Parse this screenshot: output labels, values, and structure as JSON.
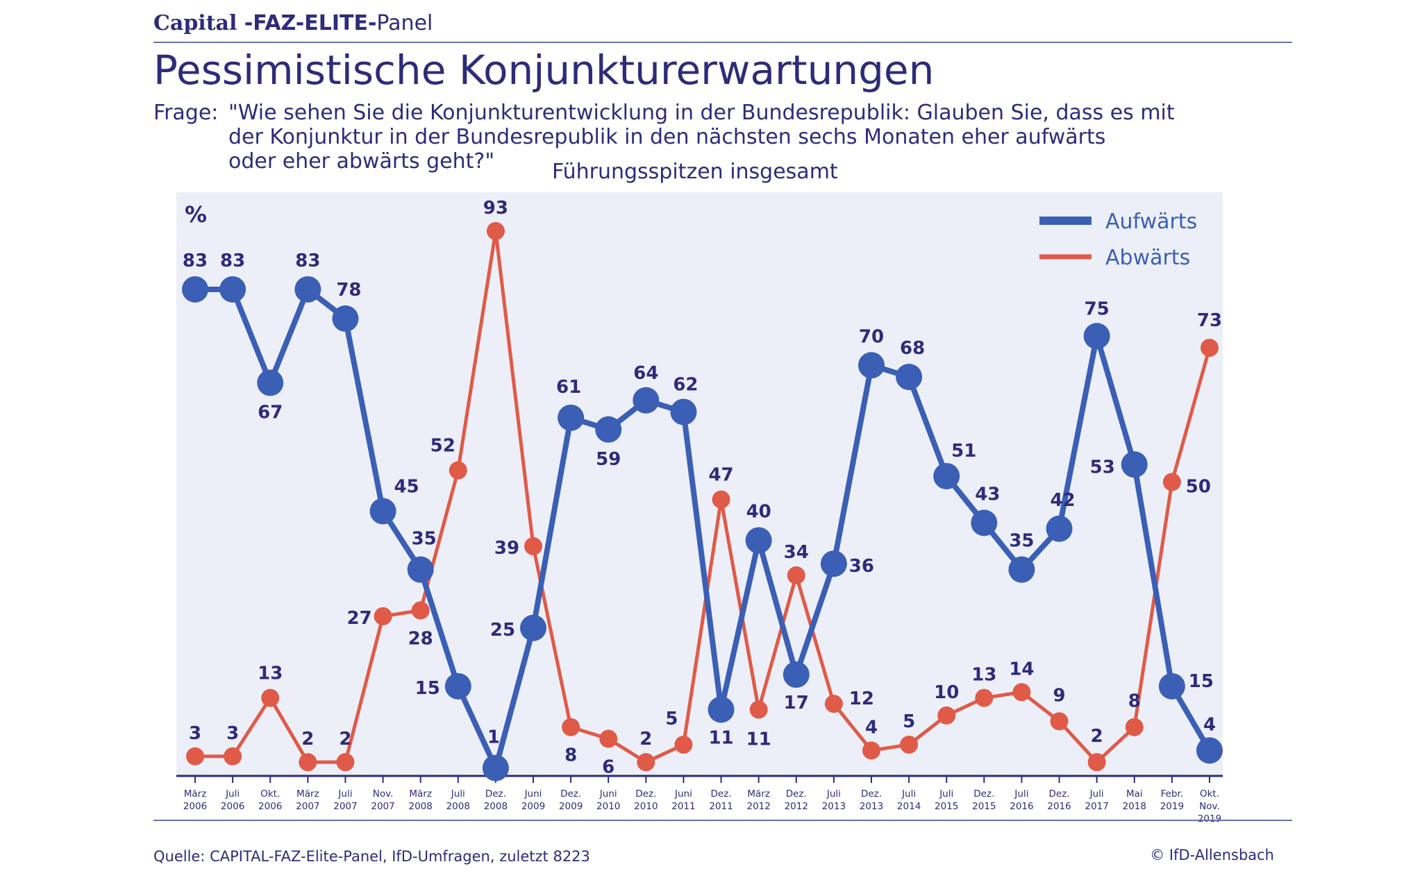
{
  "header": {
    "brand_capital": "Capital",
    "brand_faz": " -FAZ-ELITE-",
    "brand_panel": "Panel",
    "title": "Pessimistische Konjunkturerwartungen",
    "frage_label": "Frage:",
    "frage_text": "\"Wie sehen Sie die Konjunkturentwicklung in der Bundesrepublik: Glauben Sie, dass es mit\nder Konjunktur in der Bundesrepublik in den nächsten sechs Monaten eher aufwärts\noder eher abwärts geht?\"",
    "subtitle": "Führungsspitzen insgesamt"
  },
  "footer": {
    "source": "Quelle: CAPITAL-FAZ-Elite-Panel, IfD-Umfragen, zuletzt 8223",
    "copyright": "© IfD-Allensbach"
  },
  "colors": {
    "aufwaerts": "#3b5fb5",
    "abwaerts": "#e05a48",
    "plot_bg": "#eceff8",
    "text": "#2e2b7a"
  },
  "chart_data": {
    "type": "line",
    "unit_label": "%",
    "ylim": [
      0,
      100
    ],
    "grid": false,
    "legend_position": "top-right",
    "categories": [
      [
        "März",
        "2006"
      ],
      [
        "Juli",
        "2006"
      ],
      [
        "Okt.",
        "2006"
      ],
      [
        "März",
        "2007"
      ],
      [
        "Juli",
        "2007"
      ],
      [
        "Nov.",
        "2007"
      ],
      [
        "März",
        "2008"
      ],
      [
        "Juli",
        "2008"
      ],
      [
        "Dez.",
        "2008"
      ],
      [
        "Juni",
        "2009"
      ],
      [
        "Dez.",
        "2009"
      ],
      [
        "Juni",
        "2010"
      ],
      [
        "Dez.",
        "2010"
      ],
      [
        "Juni",
        "2011"
      ],
      [
        "Dez.",
        "2011"
      ],
      [
        "März",
        "2012"
      ],
      [
        "Dez.",
        "2012"
      ],
      [
        "Juli",
        "2013"
      ],
      [
        "Dez.",
        "2013"
      ],
      [
        "Juli",
        "2014"
      ],
      [
        "Juli",
        "2015"
      ],
      [
        "Dez.",
        "2015"
      ],
      [
        "Juli",
        "2016"
      ],
      [
        "Dez.",
        "2016"
      ],
      [
        "Juli",
        "2017"
      ],
      [
        "Mai",
        "2018"
      ],
      [
        "Febr.",
        "2019"
      ],
      [
        "Okt.",
        "Nov.",
        "2019"
      ]
    ],
    "series": [
      {
        "name": "Aufwärts",
        "values": [
          83,
          83,
          67,
          83,
          78,
          45,
          35,
          15,
          1,
          25,
          61,
          59,
          64,
          62,
          11,
          40,
          17,
          36,
          70,
          68,
          51,
          43,
          35,
          42,
          75,
          53,
          15,
          4
        ]
      },
      {
        "name": "Abwärts",
        "values": [
          3,
          3,
          13,
          2,
          2,
          27,
          28,
          52,
          93,
          39,
          8,
          6,
          2,
          5,
          47,
          11,
          34,
          12,
          4,
          5,
          10,
          13,
          14,
          9,
          2,
          8,
          50,
          73
        ]
      }
    ]
  }
}
